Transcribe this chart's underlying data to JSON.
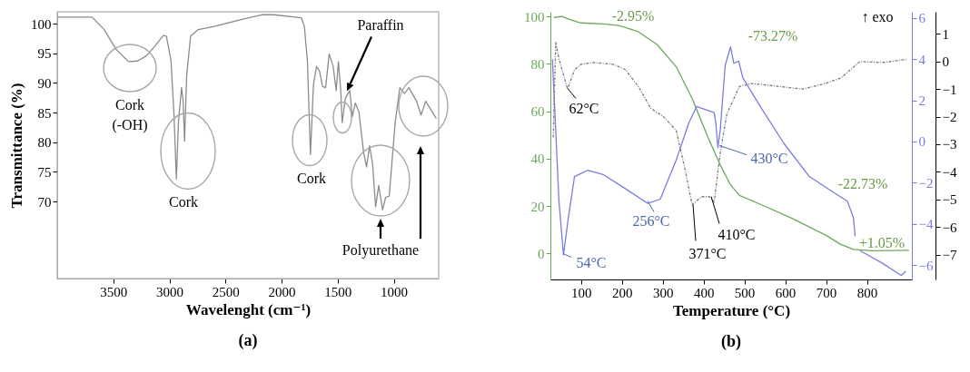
{
  "chart_data": [
    {
      "type": "line",
      "title": "(a)",
      "xlabel": "Wavelenght (cm⁻¹)",
      "ylabel": "Transmittance (%)",
      "xlim": [
        4000,
        600
      ],
      "xticks": [
        3500,
        3000,
        2500,
        2000,
        1500,
        1000
      ],
      "ylim": [
        57,
        102
      ],
      "yticks": [
        70,
        75,
        80,
        85,
        90,
        95,
        100
      ],
      "x": [
        4000,
        3689,
        3581,
        3473,
        3365,
        3284,
        3203,
        3122,
        3054,
        3027,
        2986,
        2959,
        2938,
        2919,
        2892,
        2878,
        2865,
        2846,
        2811,
        2743,
        2608,
        2338,
        2176,
        2068,
        1824,
        1797,
        1770,
        1743,
        1716,
        1689,
        1662,
        1635,
        1608,
        1576,
        1541,
        1513,
        1494,
        1473,
        1460,
        1432,
        1392,
        1370,
        1343,
        1311,
        1270,
        1243,
        1216,
        1189,
        1162,
        1135,
        1100,
        1073,
        1041,
        987,
        946,
        905,
        865,
        797,
        757,
        716,
        621
      ],
      "series": [
        {
          "color": "#8c8c8c",
          "values": [
            101.1,
            101.1,
            99.0,
            95.6,
            93.6,
            93.7,
            94.6,
            96.4,
            98.0,
            97.9,
            93.8,
            84.6,
            73.8,
            83.5,
            89.2,
            87.1,
            80.2,
            91.3,
            97.9,
            99.0,
            99.5,
            100.8,
            101.5,
            101.5,
            101.0,
            99.5,
            93.8,
            77.9,
            89.7,
            92.8,
            92.0,
            89.4,
            89.2,
            94.9,
            92.8,
            88.7,
            93.6,
            88.7,
            83.3,
            87.4,
            88.7,
            84.3,
            86.6,
            85.1,
            78.4,
            75.8,
            79.4,
            76.3,
            69.1,
            72.7,
            68.6,
            70.7,
            70.9,
            83.5,
            89.2,
            88.2,
            89.2,
            86.9,
            84.6,
            86.9,
            84.0
          ]
        }
      ],
      "annotations": [
        "Cork (-OH)",
        "Cork",
        "Cork",
        "Paraffin",
        "Polyurethane"
      ]
    },
    {
      "type": "line",
      "title": "(b)",
      "xlabel": "Temperature (°C)",
      "xlim": [
        25,
        910
      ],
      "xticks": [
        100,
        200,
        300,
        400,
        500,
        600,
        700,
        800
      ],
      "ylim": [
        -11,
        102
      ],
      "yticks": [
        0,
        20,
        40,
        60,
        80,
        100
      ],
      "y2lim": [
        -6.7,
        6.3
      ],
      "y2ticks": [
        -6,
        -4,
        -2,
        0,
        2,
        4,
        6
      ],
      "y3lim": [
        -7.9,
        1.8
      ],
      "y3ticks": [
        -7,
        -6,
        -5,
        -4,
        -3,
        -2,
        -1,
        0,
        1
      ],
      "series": [
        {
          "color": "#6aaa5a",
          "x": [
            34,
            53,
            73,
            100,
            154,
            193,
            240,
            286,
            333,
            372,
            410,
            441,
            465,
            488,
            542,
            620,
            698,
            736,
            767,
            814,
            903
          ],
          "values": [
            99.6,
            100,
            98.7,
            97.3,
            96.9,
            96.2,
            93.6,
            88.2,
            78.8,
            65.4,
            49.3,
            37.3,
            29.2,
            24.5,
            20.5,
            14.5,
            7.8,
            3.8,
            1.7,
            1.1,
            1.3
          ]
        },
        {
          "color": "#7b7be0",
          "axis": "y2",
          "x": [
            30,
            46,
            57,
            69,
            84,
            116,
            154,
            209,
            263,
            294,
            333,
            364,
            383,
            426,
            430,
            435,
            441,
            453,
            466,
            474,
            486,
            496,
            542,
            597,
            659,
            713,
            752,
            767,
            771,
            777,
            783,
            837,
            884,
            895
          ],
          "values": [
            4.0,
            -2.9,
            -5.5,
            -3.7,
            -1.7,
            -1.4,
            -1.6,
            -2.3,
            -3.0,
            -2.8,
            -0.9,
            0.9,
            1.7,
            1.4,
            0.9,
            -0.3,
            0.6,
            3.7,
            4.6,
            3.8,
            3.9,
            3.1,
            1.6,
            -0.1,
            -1.7,
            -2.4,
            -2.9,
            -3.7,
            -4.6,
            null,
            -5.3,
            -5.9,
            -6.5,
            -6.3
          ]
        },
        {
          "color": "#7a7a7a",
          "axis": "y3",
          "line_style": "dashed",
          "x": [
            32,
            38,
            46,
            67,
            84,
            100,
            131,
            178,
            209,
            240,
            271,
            302,
            333,
            356,
            372,
            395,
            414,
            426,
            441,
            457,
            488,
            519,
            581,
            643,
            698,
            736,
            783,
            837,
            899
          ],
          "values": [
            -2.75,
            0.7,
            0.1,
            -1.0,
            -0.3,
            -0.1,
            -0.04,
            -0.1,
            -0.3,
            -0.9,
            -1.7,
            -2.0,
            -2.5,
            -4.0,
            -5.2,
            -4.9,
            -4.9,
            -5.1,
            -3.3,
            -1.9,
            -0.9,
            -0.8,
            -0.9,
            -1.0,
            -0.8,
            -0.6,
            0.0,
            -0.04,
            0.08
          ]
        }
      ],
      "annotations": [
        "-2.95%",
        "-73.27%",
        "-22.73%",
        "+1.05%",
        "62°C",
        "54°C",
        "256°C",
        "371°C",
        "410°C",
        "430°C",
        "↑ exo"
      ]
    }
  ]
}
